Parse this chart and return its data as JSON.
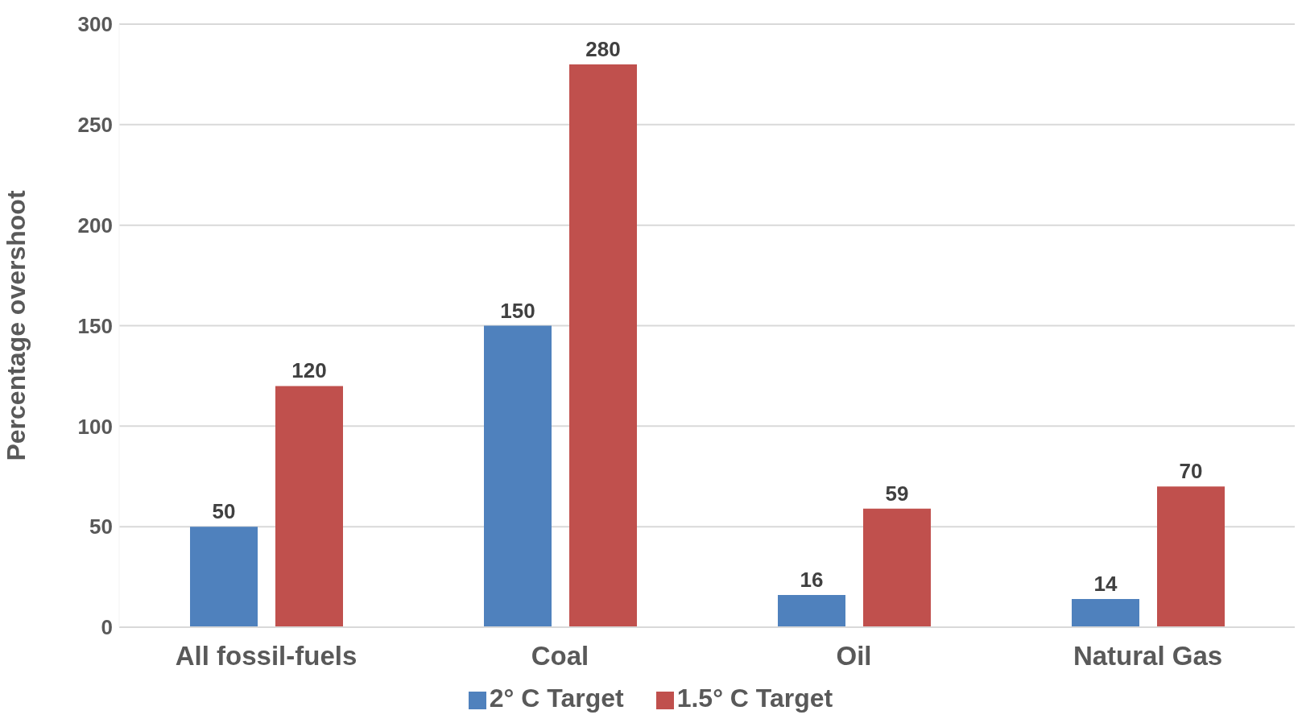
{
  "chart_data": {
    "type": "bar",
    "ylabel": "Percentage overshoot",
    "categories": [
      "All fossil-fuels",
      "Coal",
      "Oil",
      "Natural Gas"
    ],
    "series": [
      {
        "name": "2° C Target",
        "color": "#4f81bd",
        "values": [
          50,
          150,
          16,
          14
        ]
      },
      {
        "name": "1.5° C Target",
        "color": "#c0504d",
        "values": [
          120,
          280,
          59,
          70
        ]
      }
    ],
    "ylim": [
      0,
      300
    ],
    "yticks": [
      0,
      50,
      100,
      150,
      200,
      250,
      300
    ],
    "grid": "y",
    "legend": "bottom",
    "data_labels": true
  }
}
